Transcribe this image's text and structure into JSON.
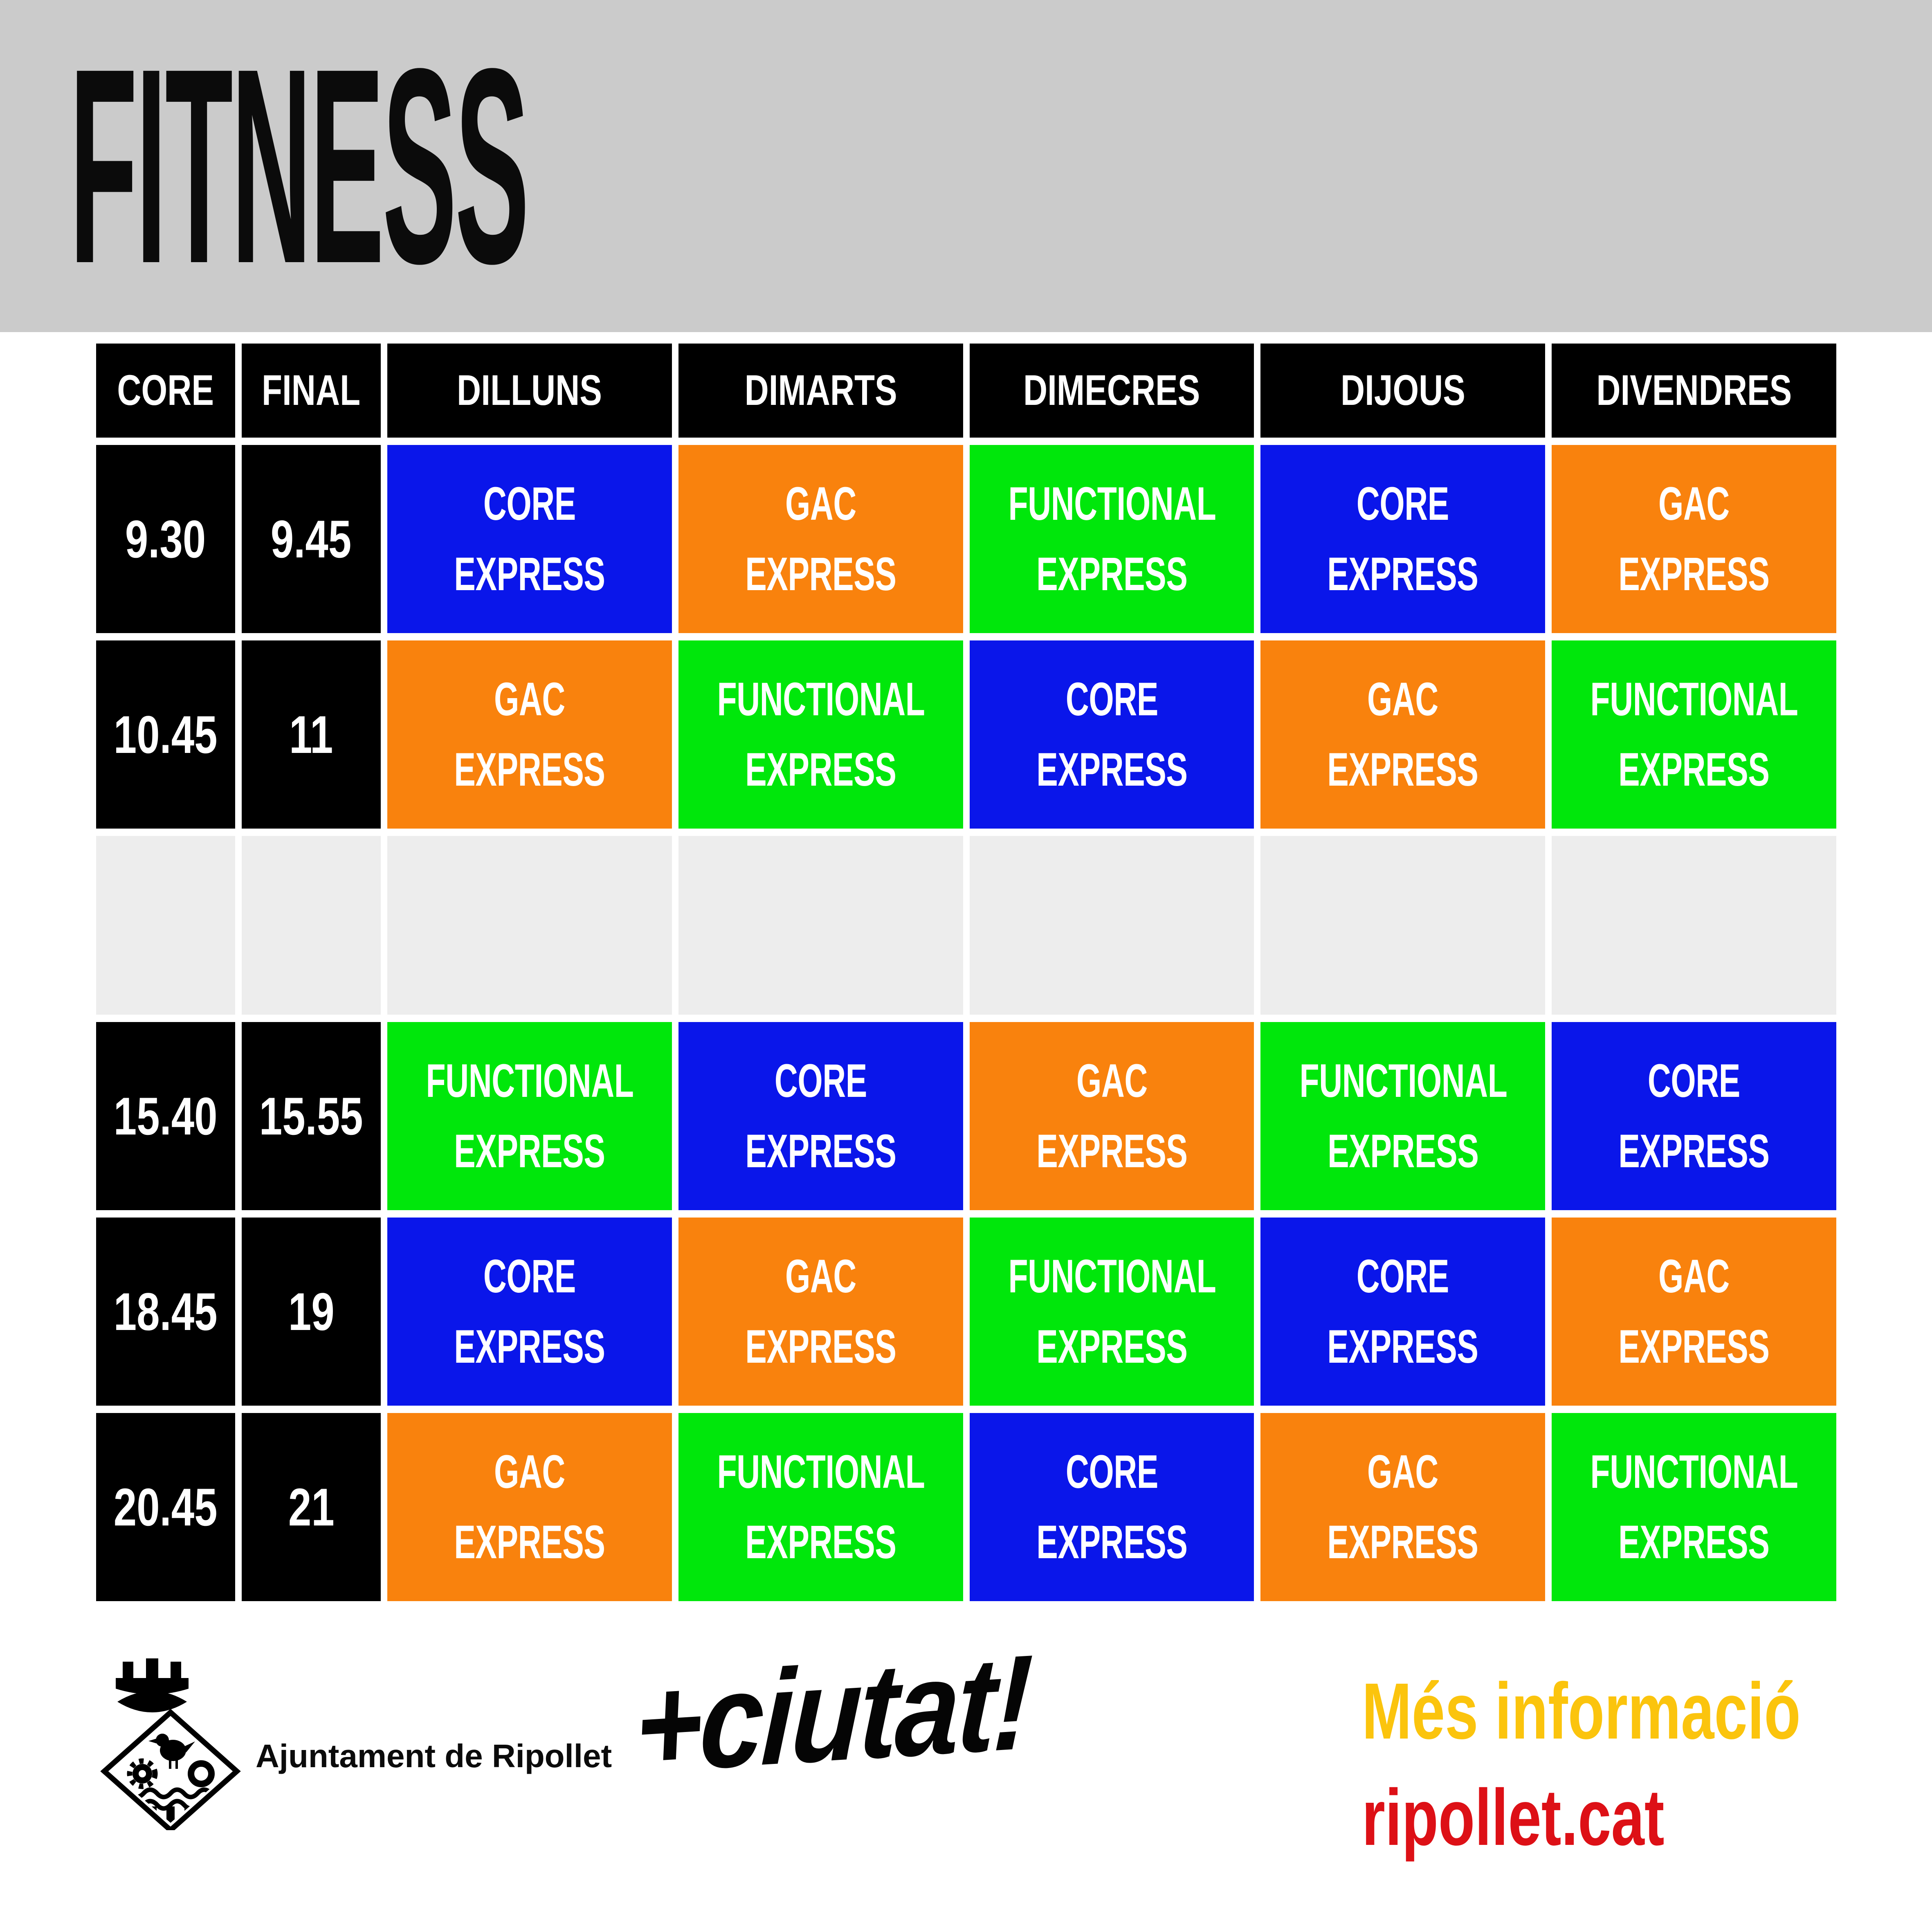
{
  "title": "FITNESS",
  "table": {
    "headers": [
      "CORE",
      "FINAL",
      "DILLUNS",
      "DIMARTS",
      "DIMECRES",
      "DIJOUS",
      "DIVENDRES"
    ],
    "rows": [
      {
        "start": "9.30",
        "end": "9.45",
        "cells": [
          "core",
          "gac",
          "functional",
          "core",
          "gac"
        ]
      },
      {
        "start": "10.45",
        "end": "11",
        "cells": [
          "gac",
          "functional",
          "core",
          "gac",
          "functional"
        ]
      },
      {
        "empty": true
      },
      {
        "start": "15.40",
        "end": "15.55",
        "cells": [
          "functional",
          "core",
          "gac",
          "functional",
          "core"
        ]
      },
      {
        "start": "18.45",
        "end": "19",
        "cells": [
          "core",
          "gac",
          "functional",
          "core",
          "gac"
        ]
      },
      {
        "start": "20.45",
        "end": "21",
        "cells": [
          "gac",
          "functional",
          "core",
          "gac",
          "functional"
        ]
      }
    ]
  },
  "legend": {
    "core": {
      "label": "CORE EXPRESS",
      "color": "#0A16EA"
    },
    "gac": {
      "label": "GAC EXPRESS",
      "color": "#F9820D"
    },
    "functional": {
      "label": "FUNCTIONAL EXPRESS",
      "color": "#00E70B"
    }
  },
  "colors": {
    "banner_bg": "#CBCBCB",
    "cell_black": "#000000",
    "empty_cell": "#EDEDED",
    "cell_text": "#FFFFFF",
    "title": "#0B0B0B",
    "more_info": "#FBC40D",
    "website": "#DD1016"
  },
  "footer": {
    "municipality": "Ajuntament de Ripollet",
    "campaign_logo": "+ciutat!",
    "more_info_label": "Més informació",
    "website": "ripollet.cat"
  }
}
